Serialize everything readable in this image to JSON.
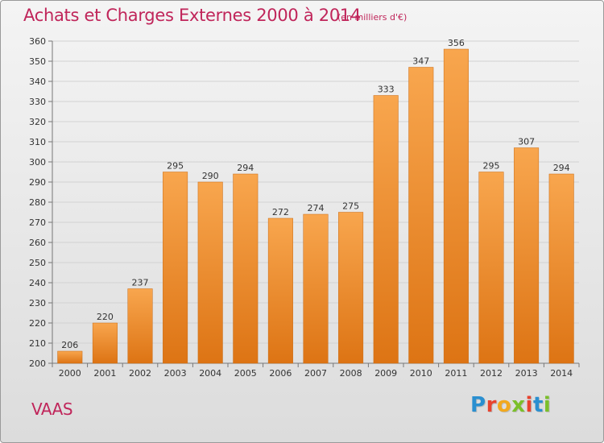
{
  "header": {
    "title": "Achats et Charges Externes 2000 à 2014",
    "subtitle": "(en milliers d'€)"
  },
  "footer": {
    "city": "VAAS",
    "logo": {
      "text": "Proxiti",
      "letter_colors": [
        "#2a8fd0",
        "#e8432e",
        "#f2a91e",
        "#7bbf2a",
        "#e8432e",
        "#2a8fd0",
        "#7bbf2a"
      ]
    }
  },
  "colors": {
    "bar_top": "#f8a64e",
    "bar_bottom": "#dd7414",
    "grid": "#d2d2d2",
    "text_accent": "#c0255a"
  },
  "chart_data": {
    "type": "bar",
    "title": "Achats et Charges Externes 2000 à 2014",
    "xlabel": "",
    "ylabel": "",
    "categories": [
      "2000",
      "2001",
      "2002",
      "2003",
      "2004",
      "2005",
      "2006",
      "2007",
      "2008",
      "2009",
      "2010",
      "2011",
      "2012",
      "2013",
      "2014"
    ],
    "values": [
      206,
      220,
      237,
      295,
      290,
      294,
      272,
      274,
      275,
      333,
      347,
      356,
      295,
      307,
      294
    ],
    "ylim": [
      200,
      360
    ],
    "yticks": [
      200,
      210,
      220,
      230,
      240,
      250,
      260,
      270,
      280,
      290,
      300,
      310,
      320,
      330,
      340,
      350,
      360
    ],
    "grid": true
  }
}
